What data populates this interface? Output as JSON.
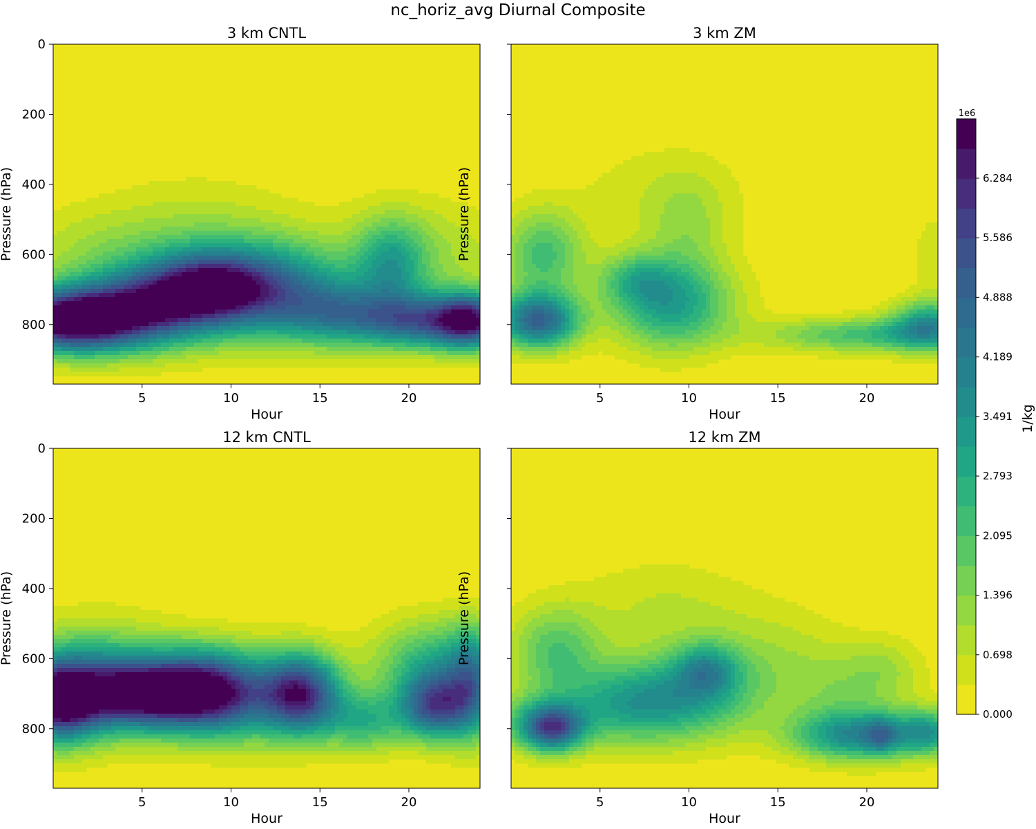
{
  "figure": {
    "title": "nc_horiz_avg Diurnal Composite"
  },
  "colorbar": {
    "label": "1/kg",
    "multiplier": "1e6",
    "tick_labels": [
      "0.000",
      "0.698",
      "1.396",
      "2.095",
      "2.793",
      "3.491",
      "4.189",
      "4.888",
      "5.586",
      "6.284"
    ],
    "levels": 18,
    "colors": [
      "#ede51c",
      "#d0e11c",
      "#b2dd2c",
      "#93d741",
      "#75d054",
      "#59c864",
      "#40bd72",
      "#2db27d",
      "#21a685",
      "#1f998a",
      "#228c8d",
      "#26818e",
      "#2a768e",
      "#2f6b8e",
      "#355f8d",
      "#3b528b",
      "#424086",
      "#472d7b",
      "#481a6c",
      "#440154"
    ]
  },
  "chart_data": [
    {
      "type": "heatmap",
      "title": "3 km CNTL",
      "xlabel": "Hour",
      "ylabel": "Pressure (hPa)",
      "xlim": [
        0,
        24
      ],
      "ylim": [
        970,
        0
      ],
      "xticks": [
        5,
        10,
        15,
        20
      ],
      "yticks": [
        0,
        200,
        400,
        600,
        800
      ],
      "units": "1e6 /kg",
      "features": [
        {
          "x": 0.5,
          "p": 790,
          "sx": 2.6,
          "sp": 60,
          "a": 5.8
        },
        {
          "x": 3.5,
          "p": 770,
          "sx": 3.0,
          "sp": 75,
          "a": 4.0
        },
        {
          "x": 6.5,
          "p": 725,
          "sx": 2.5,
          "sp": 80,
          "a": 3.3
        },
        {
          "x": 9.0,
          "p": 690,
          "sx": 2.2,
          "sp": 70,
          "a": 3.6
        },
        {
          "x": 12.5,
          "p": 710,
          "sx": 3.0,
          "sp": 95,
          "a": 4.2
        },
        {
          "x": 16.0,
          "p": 770,
          "sx": 2.0,
          "sp": 60,
          "a": 2.2
        },
        {
          "x": 19.0,
          "p": 630,
          "sx": 1.4,
          "sp": 90,
          "a": 2.4
        },
        {
          "x": 20.5,
          "p": 790,
          "sx": 2.5,
          "sp": 55,
          "a": 4.5
        },
        {
          "x": 23.5,
          "p": 790,
          "sx": 1.4,
          "sp": 55,
          "a": 5.0
        },
        {
          "x": 8.0,
          "p": 560,
          "sx": 4.0,
          "sp": 120,
          "a": 1.0
        },
        {
          "x": 2.0,
          "p": 580,
          "sx": 3.0,
          "sp": 80,
          "a": 0.7
        },
        {
          "x": 21.0,
          "p": 600,
          "sx": 3.5,
          "sp": 110,
          "a": 1.0
        }
      ]
    },
    {
      "type": "heatmap",
      "title": "3 km ZM",
      "xlabel": "Hour",
      "ylabel": "Pressure (hPa)",
      "xlim": [
        0,
        24
      ],
      "ylim": [
        970,
        0
      ],
      "xticks": [
        5,
        10,
        15,
        20
      ],
      "yticks": [
        0,
        200,
        400,
        600,
        800
      ],
      "units": "1e6 /kg",
      "features": [
        {
          "x": 1.5,
          "p": 790,
          "sx": 1.6,
          "sp": 55,
          "a": 4.8
        },
        {
          "x": 1.8,
          "p": 600,
          "sx": 1.6,
          "sp": 90,
          "a": 2.2
        },
        {
          "x": 9.0,
          "p": 740,
          "sx": 2.4,
          "sp": 90,
          "a": 3.2
        },
        {
          "x": 7.0,
          "p": 670,
          "sx": 1.4,
          "sp": 50,
          "a": 1.5
        },
        {
          "x": 8.5,
          "p": 430,
          "sx": 3.5,
          "sp": 110,
          "a": 0.6
        },
        {
          "x": 10.0,
          "p": 520,
          "sx": 1.5,
          "sp": 100,
          "a": 0.8
        },
        {
          "x": 20.0,
          "p": 830,
          "sx": 4.0,
          "sp": 35,
          "a": 2.2
        },
        {
          "x": 23.5,
          "p": 800,
          "sx": 1.5,
          "sp": 50,
          "a": 3.0
        },
        {
          "x": 23.8,
          "p": 600,
          "sx": 0.9,
          "sp": 90,
          "a": 0.6
        }
      ]
    },
    {
      "type": "heatmap",
      "title": "12 km CNTL",
      "xlabel": "Hour",
      "ylabel": "Pressure (hPa)",
      "xlim": [
        0,
        24
      ],
      "ylim": [
        970,
        0
      ],
      "xticks": [
        5,
        10,
        15,
        20
      ],
      "yticks": [
        0,
        200,
        400,
        600,
        800
      ],
      "units": "1e6 /kg",
      "features": [
        {
          "x": 0.3,
          "p": 720,
          "sx": 1.5,
          "sp": 80,
          "a": 6.0
        },
        {
          "x": 4.8,
          "p": 700,
          "sx": 2.5,
          "sp": 70,
          "a": 5.8
        },
        {
          "x": 8.5,
          "p": 690,
          "sx": 2.0,
          "sp": 80,
          "a": 4.5
        },
        {
          "x": 2.5,
          "p": 660,
          "sx": 3.0,
          "sp": 110,
          "a": 2.5
        },
        {
          "x": 11.0,
          "p": 710,
          "sx": 2.5,
          "sp": 90,
          "a": 2.8
        },
        {
          "x": 14.0,
          "p": 700,
          "sx": 1.5,
          "sp": 80,
          "a": 5.2
        },
        {
          "x": 17.5,
          "p": 780,
          "sx": 1.6,
          "sp": 60,
          "a": 2.4
        },
        {
          "x": 21.5,
          "p": 740,
          "sx": 1.4,
          "sp": 65,
          "a": 4.6
        },
        {
          "x": 21.5,
          "p": 620,
          "sx": 2.5,
          "sp": 90,
          "a": 2.6
        },
        {
          "x": 23.6,
          "p": 680,
          "sx": 1.0,
          "sp": 110,
          "a": 3.0
        }
      ]
    },
    {
      "type": "heatmap",
      "title": "12 km ZM",
      "xlabel": "Hour",
      "ylabel": "Pressure (hPa)",
      "xlim": [
        0,
        24
      ],
      "ylim": [
        970,
        0
      ],
      "xticks": [
        5,
        10,
        15,
        20
      ],
      "yticks": [
        0,
        200,
        400,
        600,
        800
      ],
      "units": "1e6 /kg",
      "features": [
        {
          "x": 2.3,
          "p": 800,
          "sx": 1.2,
          "sp": 45,
          "a": 4.2
        },
        {
          "x": 1.5,
          "p": 780,
          "sx": 2.0,
          "sp": 60,
          "a": 1.6
        },
        {
          "x": 2.5,
          "p": 580,
          "sx": 1.8,
          "sp": 90,
          "a": 2.0
        },
        {
          "x": 6.5,
          "p": 730,
          "sx": 2.5,
          "sp": 80,
          "a": 2.7
        },
        {
          "x": 10.5,
          "p": 700,
          "sx": 2.5,
          "sp": 90,
          "a": 2.4
        },
        {
          "x": 11.0,
          "p": 630,
          "sx": 1.2,
          "sp": 50,
          "a": 2.0
        },
        {
          "x": 8.5,
          "p": 450,
          "sx": 3.5,
          "sp": 100,
          "a": 0.7
        },
        {
          "x": 15.0,
          "p": 600,
          "sx": 3.0,
          "sp": 110,
          "a": 0.8
        },
        {
          "x": 19.5,
          "p": 820,
          "sx": 2.6,
          "sp": 50,
          "a": 3.6
        },
        {
          "x": 20.8,
          "p": 820,
          "sx": 0.6,
          "sp": 35,
          "a": 1.6
        },
        {
          "x": 19.0,
          "p": 700,
          "sx": 2.5,
          "sp": 80,
          "a": 1.0
        },
        {
          "x": 23.5,
          "p": 810,
          "sx": 1.2,
          "sp": 45,
          "a": 2.5
        },
        {
          "x": 21.0,
          "p": 620,
          "sx": 1.5,
          "sp": 60,
          "a": 0.7
        }
      ]
    }
  ]
}
